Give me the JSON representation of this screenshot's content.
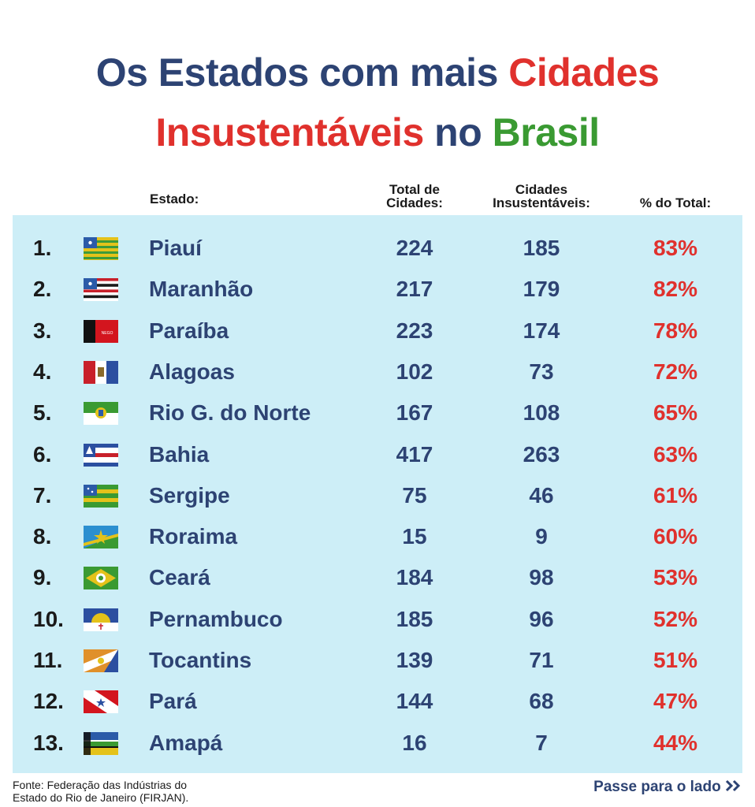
{
  "title": {
    "part1": "Os Estados com mais ",
    "part2": "Cidades",
    "part3": "Insustentáveis",
    "part4": " no ",
    "part5": "Brasil"
  },
  "headers": {
    "estado": "Estado:",
    "total_line1": "Total de",
    "total_line2": "Cidades:",
    "cid_line1": "Cidades",
    "cid_line2": "Insustentáveis:",
    "pct": "% do Total:"
  },
  "chart_data": {
    "type": "table",
    "columns": [
      "Estado:",
      "Total de Cidades:",
      "Cidades Insustentáveis:",
      "% do Total:"
    ],
    "rows": [
      {
        "rank": "1.",
        "estado": "Piauí",
        "total": "224",
        "insustentaveis": "185",
        "pct": "83%",
        "flag": "piaui-flag"
      },
      {
        "rank": "2.",
        "estado": "Maranhão",
        "total": "217",
        "insustentaveis": "179",
        "pct": "82%",
        "flag": "maranhao-flag"
      },
      {
        "rank": "3.",
        "estado": "Paraíba",
        "total": "223",
        "insustentaveis": "174",
        "pct": "78%",
        "flag": "paraiba-flag"
      },
      {
        "rank": "4.",
        "estado": "Alagoas",
        "total": "102",
        "insustentaveis": "73",
        "pct": "72%",
        "flag": "alagoas-flag"
      },
      {
        "rank": "5.",
        "estado": "Rio G. do Norte",
        "total": "167",
        "insustentaveis": "108",
        "pct": "65%",
        "flag": "rio-grande-do-norte-flag"
      },
      {
        "rank": "6.",
        "estado": "Bahia",
        "total": "417",
        "insustentaveis": "263",
        "pct": "63%",
        "flag": "bahia-flag"
      },
      {
        "rank": "7.",
        "estado": "Sergipe",
        "total": "75",
        "insustentaveis": "46",
        "pct": "61%",
        "flag": "sergipe-flag"
      },
      {
        "rank": "8.",
        "estado": "Roraima",
        "total": "15",
        "insustentaveis": "9",
        "pct": "60%",
        "flag": "roraima-flag"
      },
      {
        "rank": "9.",
        "estado": "Ceará",
        "total": "184",
        "insustentaveis": "98",
        "pct": "53%",
        "flag": "ceara-flag"
      },
      {
        "rank": "10.",
        "estado": "Pernambuco",
        "total": "185",
        "insustentaveis": "96",
        "pct": "52%",
        "flag": "pernambuco-flag"
      },
      {
        "rank": "11.",
        "estado": "Tocantins",
        "total": "139",
        "insustentaveis": "71",
        "pct": "51%",
        "flag": "tocantins-flag"
      },
      {
        "rank": "12.",
        "estado": "Pará",
        "total": "144",
        "insustentaveis": "68",
        "pct": "47%",
        "flag": "para-flag"
      },
      {
        "rank": "13.",
        "estado": "Amapá",
        "total": "16",
        "insustentaveis": "7",
        "pct": "44%",
        "flag": "amapa-flag"
      }
    ]
  },
  "footer": {
    "source_line1": "Fonte: Federação das Indústrias do",
    "source_line2": "Estado do Rio de Janeiro (FIRJAN).",
    "next_label": "Passe para o lado",
    "next_icon": "double-chevron-right-icon"
  },
  "colors": {
    "title_blue": "#2d4373",
    "title_red": "#e0312d",
    "title_green": "#3a9a32",
    "table_bg": "#cdeef7"
  }
}
